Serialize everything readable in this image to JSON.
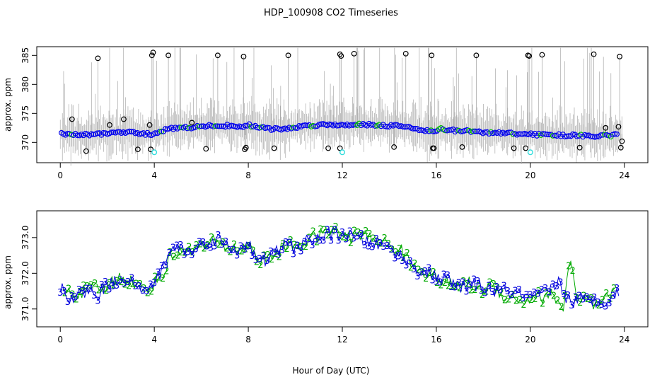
{
  "chart_data": [
    {
      "type": "scatter",
      "title": "HDP_100908  CO2 Timeseries",
      "ylabel": "approx. ppm",
      "xlim": [
        -1,
        25
      ],
      "ylim": [
        366.5,
        386.5
      ],
      "xticks": [
        "0",
        "4",
        "8",
        "12",
        "16",
        "20",
        "24"
      ],
      "yticks": [
        "370",
        "375",
        "380",
        "385"
      ],
      "colors": {
        "main": "#0000ee",
        "secondary": "#00bb00",
        "outlier": "#000000",
        "low_flag": "#33dddd",
        "noise": "#aaaaaa"
      },
      "trend": {
        "x": [
          0,
          0.5,
          1,
          1.5,
          2,
          2.5,
          3,
          3.5,
          3.9,
          4.2,
          4.6,
          5,
          5.5,
          6,
          6.5,
          7,
          7.5,
          7.8,
          8,
          8.5,
          9,
          9.5,
          10,
          10.5,
          11,
          11.5,
          12,
          12.5,
          13,
          13.5,
          14,
          14.5,
          15,
          15.5,
          15.8,
          16.2,
          16.5,
          17,
          17.5,
          18,
          18.5,
          19,
          19.5,
          20,
          20.5,
          21,
          21.5,
          22,
          22.5,
          23,
          23.5,
          23.8
        ],
        "y": [
          371.5,
          371.3,
          371.3,
          371.4,
          371.6,
          371.7,
          371.7,
          371.5,
          371.4,
          371.8,
          372.4,
          372.5,
          372.6,
          372.7,
          372.9,
          372.9,
          372.8,
          372.7,
          373.0,
          372.6,
          372.3,
          372.3,
          372.6,
          372.9,
          373.0,
          373.1,
          373.0,
          373.1,
          373.1,
          373.0,
          372.9,
          372.8,
          372.5,
          372.1,
          371.9,
          372.3,
          372.1,
          372.0,
          371.9,
          371.7,
          371.6,
          371.6,
          371.5,
          371.4,
          371.3,
          371.3,
          371.2,
          371.2,
          371.1,
          371.1,
          371.2,
          371.5
        ]
      },
      "outliers": [
        {
          "x": 0.5,
          "y": 374.0
        },
        {
          "x": 1.1,
          "y": 368.5
        },
        {
          "x": 1.6,
          "y": 384.5
        },
        {
          "x": 2.1,
          "y": 373.0
        },
        {
          "x": 2.7,
          "y": 374.0
        },
        {
          "x": 3.3,
          "y": 368.8
        },
        {
          "x": 3.8,
          "y": 373.0
        },
        {
          "x": 3.85,
          "y": 368.8
        },
        {
          "x": 3.9,
          "y": 385.0
        },
        {
          "x": 3.95,
          "y": 385.5
        },
        {
          "x": 4.6,
          "y": 385.0
        },
        {
          "x": 5.6,
          "y": 373.4
        },
        {
          "x": 6.2,
          "y": 368.9
        },
        {
          "x": 6.7,
          "y": 385.0
        },
        {
          "x": 7.8,
          "y": 384.8
        },
        {
          "x": 7.85,
          "y": 368.8
        },
        {
          "x": 7.9,
          "y": 369.1
        },
        {
          "x": 9.1,
          "y": 369.0
        },
        {
          "x": 9.7,
          "y": 385.0
        },
        {
          "x": 11.4,
          "y": 369.0
        },
        {
          "x": 11.9,
          "y": 385.2
        },
        {
          "x": 11.95,
          "y": 384.9
        },
        {
          "x": 11.9,
          "y": 369.0
        },
        {
          "x": 12.5,
          "y": 385.3
        },
        {
          "x": 14.2,
          "y": 369.2
        },
        {
          "x": 14.7,
          "y": 385.3
        },
        {
          "x": 15.8,
          "y": 385.0
        },
        {
          "x": 15.85,
          "y": 369.0
        },
        {
          "x": 15.9,
          "y": 369.0
        },
        {
          "x": 17.1,
          "y": 369.2
        },
        {
          "x": 17.7,
          "y": 385.0
        },
        {
          "x": 19.3,
          "y": 369.0
        },
        {
          "x": 19.8,
          "y": 369.0
        },
        {
          "x": 19.9,
          "y": 385.0
        },
        {
          "x": 19.95,
          "y": 384.9
        },
        {
          "x": 20.5,
          "y": 385.1
        },
        {
          "x": 22.1,
          "y": 369.1
        },
        {
          "x": 22.7,
          "y": 385.2
        },
        {
          "x": 23.2,
          "y": 372.5
        },
        {
          "x": 23.75,
          "y": 372.7
        },
        {
          "x": 23.8,
          "y": 384.8
        },
        {
          "x": 23.9,
          "y": 370.2
        },
        {
          "x": 23.85,
          "y": 369.1
        }
      ],
      "low_flag": [
        {
          "x": 4.0,
          "y": 368.3
        },
        {
          "x": 12.0,
          "y": 368.3
        },
        {
          "x": 20.0,
          "y": 368.3
        }
      ]
    },
    {
      "type": "line",
      "title": "",
      "xlabel": "Hour of Day (UTC)",
      "ylabel": "approx. ppm",
      "xlim": [
        -1,
        25
      ],
      "ylim": [
        370.5,
        373.75
      ],
      "xticks": [
        "0",
        "4",
        "8",
        "12",
        "16",
        "20",
        "24"
      ],
      "yticks": [
        "371.0",
        "372.0",
        "373.0"
      ],
      "series": [
        {
          "name": "3",
          "color": "#0000dd",
          "x": [
            0,
            0.4,
            0.8,
            1.2,
            1.6,
            2.0,
            2.4,
            2.8,
            3.2,
            3.5,
            3.9,
            4.2,
            4.5,
            4.8,
            5.2,
            5.6,
            6.0,
            6.4,
            6.8,
            7.0,
            7.4,
            7.8,
            8.0,
            8.3,
            8.6,
            9.0,
            9.5,
            10.0,
            10.5,
            11.0,
            11.5,
            12.0,
            12.5,
            13.0,
            13.5,
            14.0,
            14.5,
            14.8,
            15.2,
            15.6,
            16.0,
            16.5,
            17.0,
            17.5,
            18.0,
            18.5,
            19.0,
            19.5,
            20.0,
            20.4,
            20.8,
            21.2,
            21.5,
            21.8,
            22.2,
            22.6,
            23.0,
            23.4,
            23.8
          ],
          "y": [
            371.6,
            371.3,
            371.4,
            371.5,
            371.4,
            371.7,
            371.8,
            371.9,
            371.7,
            371.4,
            371.7,
            371.9,
            372.4,
            372.7,
            372.7,
            372.6,
            372.8,
            372.9,
            372.95,
            372.8,
            372.6,
            372.8,
            372.9,
            372.4,
            372.3,
            372.5,
            372.8,
            372.7,
            372.9,
            373.0,
            373.1,
            373.1,
            373.0,
            372.9,
            372.8,
            372.7,
            372.5,
            372.3,
            372.1,
            372.0,
            371.9,
            371.8,
            371.6,
            371.7,
            371.6,
            371.5,
            371.5,
            371.4,
            371.3,
            371.4,
            371.5,
            371.8,
            371.3,
            371.2,
            371.3,
            371.2,
            371.2,
            371.3,
            371.5
          ]
        },
        {
          "name": "2",
          "color": "#00aa00",
          "x": [
            0.2,
            0.6,
            1.0,
            1.4,
            1.8,
            2.2,
            2.6,
            3.0,
            3.4,
            3.7,
            4.1,
            4.4,
            4.7,
            5.0,
            5.4,
            5.8,
            6.2,
            6.6,
            7.2,
            7.6,
            8.1,
            8.5,
            8.8,
            9.2,
            9.7,
            10.2,
            10.7,
            11.2,
            11.7,
            12.2,
            12.7,
            13.2,
            13.7,
            14.2,
            14.6,
            15.0,
            15.4,
            15.8,
            16.3,
            16.8,
            17.3,
            17.8,
            18.3,
            18.8,
            19.3,
            19.8,
            20.2,
            20.6,
            21.0,
            21.4,
            21.7,
            22.0,
            22.4,
            22.8,
            23.2,
            23.6
          ],
          "y": [
            371.5,
            371.4,
            371.5,
            371.6,
            371.5,
            371.8,
            371.9,
            371.8,
            371.6,
            371.5,
            371.8,
            372.0,
            372.5,
            372.6,
            372.7,
            372.7,
            372.8,
            372.9,
            372.7,
            372.7,
            372.8,
            372.3,
            372.4,
            372.6,
            372.8,
            372.8,
            373.0,
            373.1,
            373.2,
            373.0,
            373.1,
            373.0,
            372.9,
            372.7,
            372.6,
            372.2,
            372.1,
            371.9,
            371.8,
            371.6,
            371.8,
            371.5,
            371.7,
            371.4,
            371.3,
            371.2,
            371.4,
            371.3,
            371.4,
            371.0,
            372.5,
            371.1,
            371.3,
            371.0,
            371.3,
            371.5
          ]
        }
      ]
    }
  ]
}
